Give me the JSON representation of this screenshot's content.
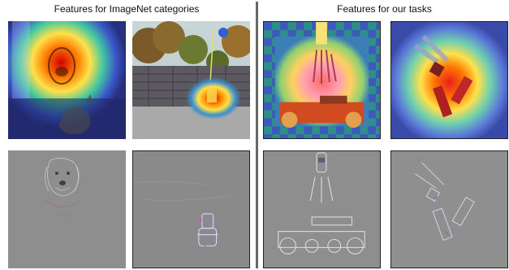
{
  "figure": {
    "left_heading": "Features for ImageNet categories",
    "right_heading": "Features for our tasks"
  },
  "panels": {
    "top_row": [
      {
        "name": "dog-and-cat-heatmap",
        "overlay": "gradcam"
      },
      {
        "name": "fire-hydrant-heatmap",
        "overlay": "gradcam"
      },
      {
        "name": "robot-arm-heatmap",
        "overlay": "gradcam"
      },
      {
        "name": "robot-gripper-heatmap",
        "overlay": "gradcam"
      }
    ],
    "bottom_row": [
      {
        "name": "dog-saliency",
        "overlay": "guided-backprop"
      },
      {
        "name": "fire-hydrant-saliency",
        "overlay": "guided-backprop"
      },
      {
        "name": "robot-arm-saliency",
        "overlay": "guided-backprop"
      },
      {
        "name": "robot-gripper-saliency",
        "overlay": "guided-backprop"
      }
    ]
  },
  "colors": {
    "heat_high": "#e41a1c",
    "heat_mid": "#ffdd33",
    "heat_low": "#2b3a9c",
    "saliency_bg": "#8e8e8e"
  }
}
